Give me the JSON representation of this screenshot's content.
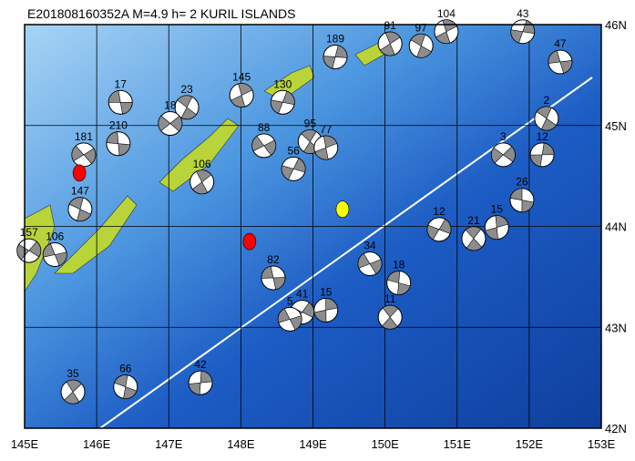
{
  "map": {
    "title": "E201808160352A  M=4.9  h=   2  KURIL ISLANDS",
    "lon_range": [
      145,
      153
    ],
    "lat_range": [
      42,
      46
    ],
    "lon_ticks": [
      {
        "value": 145,
        "label": "145E"
      },
      {
        "value": 146,
        "label": "146E"
      },
      {
        "value": 147,
        "label": "147E"
      },
      {
        "value": 148,
        "label": "148E"
      },
      {
        "value": 149,
        "label": "149E"
      },
      {
        "value": 150,
        "label": "150E"
      },
      {
        "value": 151,
        "label": "151E"
      },
      {
        "value": 152,
        "label": "152E"
      },
      {
        "value": 153,
        "label": "153E"
      }
    ],
    "lat_ticks": [
      {
        "value": 42,
        "label": "42N"
      },
      {
        "value": 43,
        "label": "43N"
      },
      {
        "value": 44,
        "label": "44N"
      },
      {
        "value": 45,
        "label": "45N"
      },
      {
        "value": 46,
        "label": "46N"
      }
    ],
    "events": [
      {
        "label": "17",
        "lon": 146.33,
        "lat": 45.23
      },
      {
        "label": "23",
        "lon": 147.25,
        "lat": 45.18
      },
      {
        "label": "145",
        "lon": 148.01,
        "lat": 45.3
      },
      {
        "label": "130",
        "lon": 148.58,
        "lat": 45.23
      },
      {
        "label": "181",
        "lon": 145.82,
        "lat": 44.71
      },
      {
        "label": "210",
        "lon": 146.3,
        "lat": 44.82
      },
      {
        "label": "95",
        "lon": 148.96,
        "lat": 44.84
      },
      {
        "label": "77",
        "lon": 149.18,
        "lat": 44.78
      },
      {
        "label": "56",
        "lon": 148.73,
        "lat": 44.57
      },
      {
        "label": "88",
        "lon": 148.32,
        "lat": 44.8
      },
      {
        "label": "26",
        "lon": 151.9,
        "lat": 44.26
      },
      {
        "label": "21",
        "lon": 151.23,
        "lat": 43.88
      },
      {
        "label": "15",
        "lon": 151.55,
        "lat": 43.99
      },
      {
        "label": "12",
        "lon": 150.75,
        "lat": 43.97
      },
      {
        "label": "34",
        "lon": 149.79,
        "lat": 43.63
      },
      {
        "label": "18",
        "lon": 150.19,
        "lat": 43.44
      },
      {
        "label": "11",
        "lon": 150.07,
        "lat": 43.1
      },
      {
        "label": "15",
        "lon": 149.18,
        "lat": 43.17
      },
      {
        "label": "41",
        "lon": 148.85,
        "lat": 43.15
      },
      {
        "label": "5",
        "lon": 148.68,
        "lat": 43.08
      },
      {
        "label": "66",
        "lon": 146.4,
        "lat": 42.41
      },
      {
        "label": "35",
        "lon": 145.67,
        "lat": 42.36
      },
      {
        "label": "42",
        "lon": 147.44,
        "lat": 42.45
      },
      {
        "label": "157",
        "lon": 145.06,
        "lat": 43.76
      },
      {
        "label": "106",
        "lon": 145.42,
        "lat": 43.72
      },
      {
        "label": "147",
        "lon": 145.77,
        "lat": 44.17
      },
      {
        "label": "106",
        "lon": 147.46,
        "lat": 44.44
      },
      {
        "label": "12",
        "lon": 152.18,
        "lat": 44.71
      },
      {
        "label": "3",
        "lon": 151.64,
        "lat": 44.71
      },
      {
        "label": "47",
        "lon": 152.43,
        "lat": 45.63
      },
      {
        "label": "97",
        "lon": 150.5,
        "lat": 45.79
      },
      {
        "label": "91",
        "lon": 150.07,
        "lat": 45.81
      },
      {
        "label": "189",
        "lon": 149.31,
        "lat": 45.68
      },
      {
        "label": "18",
        "lon": 147.02,
        "lat": 45.02
      },
      {
        "label": "82",
        "lon": 148.45,
        "lat": 43.49
      },
      {
        "label": "2",
        "lon": 152.24,
        "lat": 45.07
      },
      {
        "label": "104",
        "lon": 150.85,
        "lat": 45.93
      },
      {
        "label": "43",
        "lon": 151.91,
        "lat": 45.93
      }
    ],
    "markers": [
      {
        "color": "#ff0000",
        "lon": 145.76,
        "lat": 44.53
      },
      {
        "color": "#ff0000",
        "lon": 148.12,
        "lat": 43.85
      },
      {
        "color": "#ffff00",
        "lon": 149.41,
        "lat": 44.17
      }
    ]
  }
}
